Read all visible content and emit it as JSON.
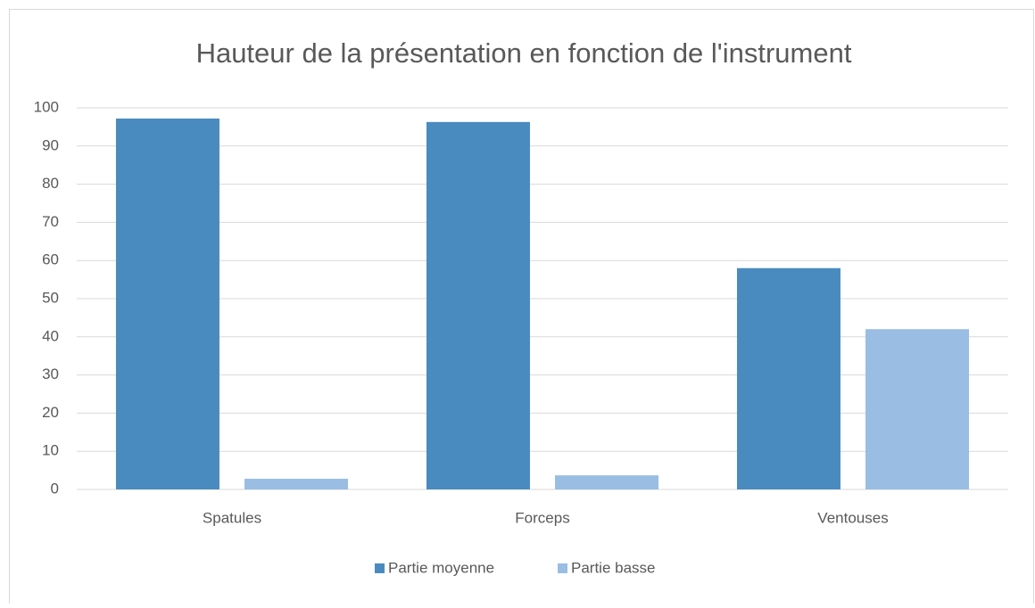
{
  "chart_data": {
    "type": "bar",
    "title": "Hauteur de la présentation en fonction de l'instrument",
    "categories": [
      "Spatules",
      "Forceps",
      "Ventouses"
    ],
    "series": [
      {
        "name": "Partie moyenne",
        "color": "#4a8bbf",
        "values": [
          97.2,
          96.3,
          58
        ]
      },
      {
        "name": "Partie basse",
        "color": "#9abde3",
        "values": [
          2.8,
          3.7,
          42
        ]
      }
    ],
    "ylim": [
      0,
      100
    ],
    "yticks": [
      0,
      10,
      20,
      30,
      40,
      50,
      60,
      70,
      80,
      90,
      100
    ],
    "grid": true,
    "legend": "bottom"
  }
}
